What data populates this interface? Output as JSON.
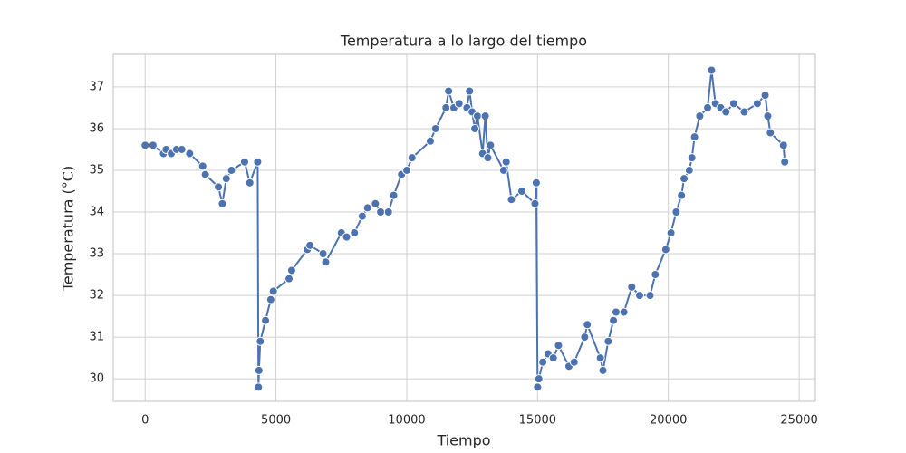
{
  "chart_data": {
    "type": "line",
    "title": "Temperatura a lo largo del tiempo",
    "x_label": "Tiempo",
    "y_label": "Temperatura (°C)",
    "xlim": [
      -1220,
      25620
    ],
    "ylim": [
      29.46,
      37.78
    ],
    "xticks": [
      0,
      5000,
      10000,
      15000,
      20000,
      25000
    ],
    "yticks": [
      30,
      31,
      32,
      33,
      34,
      35,
      36,
      37
    ],
    "grid": true,
    "series": [
      {
        "color": "#4c72b0",
        "x": [
          0,
          300,
          700,
          800,
          1000,
          1200,
          1400,
          1700,
          2200,
          2300,
          2800,
          2950,
          3100,
          3300,
          3800,
          4000,
          4300,
          4330,
          4350,
          4400,
          4600,
          4800,
          4900,
          5500,
          5600,
          6200,
          6300,
          6800,
          6900,
          7500,
          7700,
          8000,
          8300,
          8500,
          8800,
          9000,
          9300,
          9500,
          9800,
          10000,
          10200,
          10900,
          11100,
          11500,
          11600,
          11800,
          12000,
          12300,
          12400,
          12500,
          12600,
          12700,
          12900,
          13000,
          13100,
          13200,
          13700,
          13800,
          14000,
          14400,
          14900,
          14950,
          15000,
          15050,
          15200,
          15400,
          15600,
          15800,
          16200,
          16400,
          16800,
          16900,
          17400,
          17500,
          17700,
          17900,
          18000,
          18300,
          18600,
          18900,
          19300,
          19500,
          19900,
          20100,
          20300,
          20500,
          20600,
          20800,
          20900,
          21000,
          21200,
          21500,
          21650,
          21800,
          22000,
          22200,
          22500,
          22900,
          23400,
          23700,
          23800,
          23900,
          24400,
          24450
        ],
        "values": [
          35.6,
          35.6,
          35.4,
          35.5,
          35.4,
          35.5,
          35.5,
          35.4,
          35.1,
          34.9,
          34.6,
          34.2,
          34.8,
          35.0,
          35.2,
          34.7,
          35.2,
          29.8,
          30.2,
          30.9,
          31.4,
          31.9,
          32.1,
          32.4,
          32.6,
          33.1,
          33.2,
          33.0,
          32.8,
          33.5,
          33.4,
          33.5,
          33.9,
          34.1,
          34.2,
          34.0,
          34.0,
          34.4,
          34.9,
          35.0,
          35.3,
          35.7,
          36.0,
          36.5,
          36.9,
          36.5,
          36.6,
          36.5,
          36.9,
          36.4,
          36.0,
          36.3,
          35.4,
          36.3,
          35.3,
          35.6,
          35.0,
          35.2,
          34.3,
          34.5,
          34.2,
          34.7,
          29.8,
          30.0,
          30.4,
          30.6,
          30.5,
          30.8,
          30.3,
          30.4,
          31.0,
          31.3,
          30.5,
          30.2,
          30.9,
          31.4,
          31.6,
          31.6,
          32.2,
          32.0,
          32.0,
          32.5,
          33.1,
          33.5,
          34.0,
          34.4,
          34.8,
          35.0,
          35.3,
          35.8,
          36.3,
          36.5,
          37.4,
          36.6,
          36.5,
          36.4,
          36.6,
          36.4,
          36.6,
          36.8,
          36.3,
          35.9,
          35.6,
          35.2
        ]
      }
    ]
  }
}
